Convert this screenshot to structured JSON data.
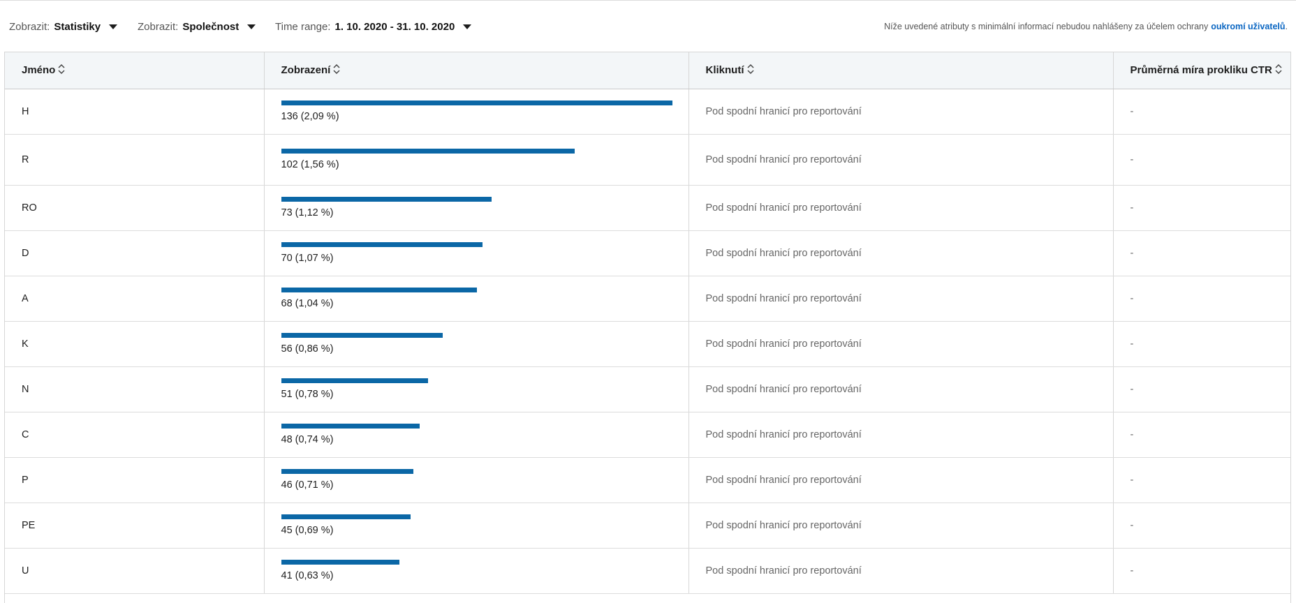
{
  "filters": {
    "metric": {
      "label": "Zobrazit:",
      "value": "Statistiky"
    },
    "dimension": {
      "label": "Zobrazit:",
      "value": "Společnost"
    },
    "time_range": {
      "label": "Time range:",
      "value": "1. 10. 2020 - 31. 10. 2020"
    }
  },
  "privacy_note": {
    "text": "Níže uvedené atributy s minimální informací nebudou nahlášeny za účelem ochrany",
    "link": "oukromí uživatelů",
    "suffix": "."
  },
  "table": {
    "columns": [
      "Jméno",
      "Zobrazení",
      "Kliknutí",
      "Průměrná míra prokliku CTR"
    ],
    "max_impressions": 136,
    "rows": [
      {
        "name": "H",
        "impressions": 136,
        "impressions_label": "136 (2,09 %)",
        "clicks": "Pod spodní hranicí pro reportování",
        "ctr": "-"
      },
      {
        "name": "R",
        "impressions": 102,
        "impressions_label": "102 (1,56 %)",
        "clicks": "Pod spodní hranicí pro reportování",
        "ctr": "-"
      },
      {
        "name": "RO",
        "impressions": 73,
        "impressions_label": "73 (1,12 %)",
        "clicks": "Pod spodní hranicí pro reportování",
        "ctr": "-"
      },
      {
        "name": "D",
        "impressions": 70,
        "impressions_label": "70 (1,07 %)",
        "clicks": "Pod spodní hranicí pro reportování",
        "ctr": "-"
      },
      {
        "name": "A",
        "impressions": 68,
        "impressions_label": "68 (1,04 %)",
        "clicks": "Pod spodní hranicí pro reportování",
        "ctr": "-"
      },
      {
        "name": "K",
        "impressions": 56,
        "impressions_label": "56 (0,86 %)",
        "clicks": "Pod spodní hranicí pro reportování",
        "ctr": "-"
      },
      {
        "name": "N",
        "impressions": 51,
        "impressions_label": "51 (0,78 %)",
        "clicks": "Pod spodní hranicí pro reportování",
        "ctr": "-"
      },
      {
        "name": "C",
        "impressions": 48,
        "impressions_label": "48 (0,74 %)",
        "clicks": "Pod spodní hranicí pro reportování",
        "ctr": "-"
      },
      {
        "name": "P",
        "impressions": 46,
        "impressions_label": "46 (0,71 %)",
        "clicks": "Pod spodní hranicí pro reportování",
        "ctr": "-"
      },
      {
        "name": "PE",
        "impressions": 45,
        "impressions_label": "45 (0,69 %)",
        "clicks": "Pod spodní hranicí pro reportování",
        "ctr": "-"
      },
      {
        "name": "U",
        "impressions": 41,
        "impressions_label": "41 (0,63 %)",
        "clicks": "Pod spodní hranicí pro reportování",
        "ctr": "-"
      }
    ]
  },
  "colors": {
    "bar": "#0b67a6",
    "link": "#0a66c2",
    "header_bg": "#f3f6f8"
  },
  "icons": {
    "dropdown": "caret-down-icon",
    "sort": "sort-updown-icon"
  }
}
